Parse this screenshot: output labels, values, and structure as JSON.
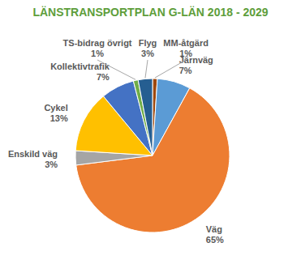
{
  "chart_data": {
    "type": "pie",
    "title": "LÄNSTRANSPORTPLAN G-LÄN 2018 - 2029",
    "categories": [
      "MM-åtgärd",
      "Järnväg",
      "Väg",
      "Enskild väg",
      "Cykel",
      "Kollektivtrafik",
      "TS-bidrag övrigt",
      "Flyg"
    ],
    "values": [
      1,
      7,
      65,
      3,
      13,
      7,
      1,
      3
    ],
    "value_labels": [
      "1%",
      "7%",
      "65%",
      "3%",
      "13%",
      "7%",
      "1%",
      "3%"
    ],
    "colors": [
      "#9E480E",
      "#5B9BD5",
      "#ED7D31",
      "#A5A5A5",
      "#FFC000",
      "#4472C4",
      "#70AD47",
      "#255E91"
    ],
    "data_labels": true
  }
}
